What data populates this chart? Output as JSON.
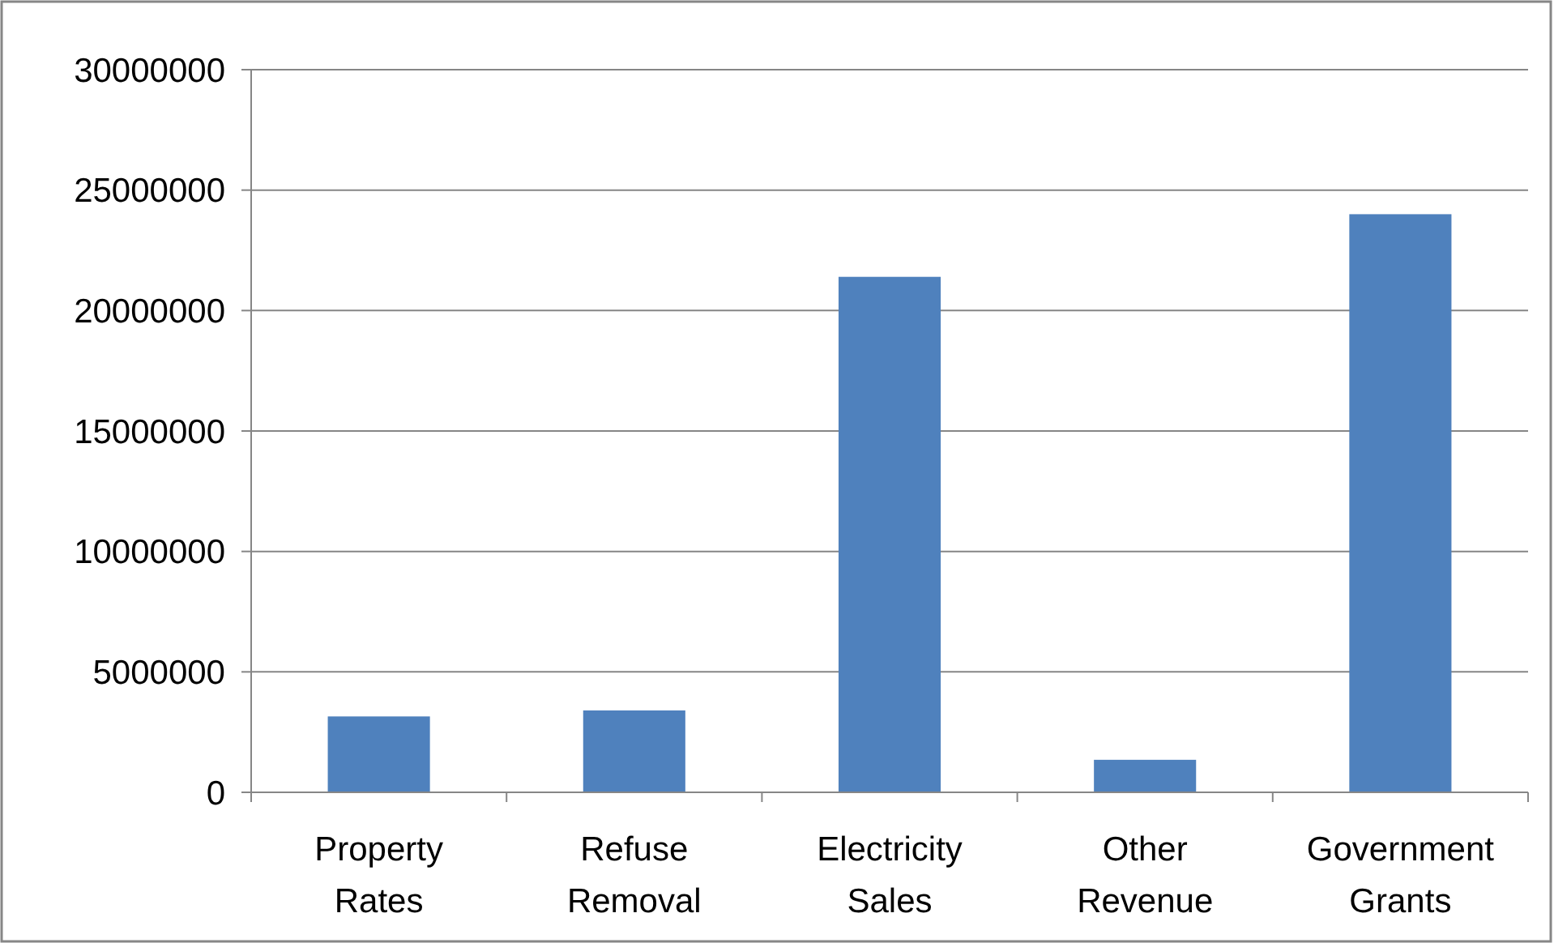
{
  "chart_data": {
    "type": "bar",
    "categories": [
      "Property Rates",
      "Refuse Removal",
      "Electricity Sales",
      "Other Revenue",
      "Government Grants"
    ],
    "values": [
      3150000,
      3400000,
      21400000,
      1350000,
      24000000
    ],
    "color": "#4f81bd",
    "ylim": [
      0,
      30000000
    ],
    "yticks": [
      0,
      5000000,
      10000000,
      15000000,
      20000000,
      25000000,
      30000000
    ],
    "grid": "y"
  }
}
